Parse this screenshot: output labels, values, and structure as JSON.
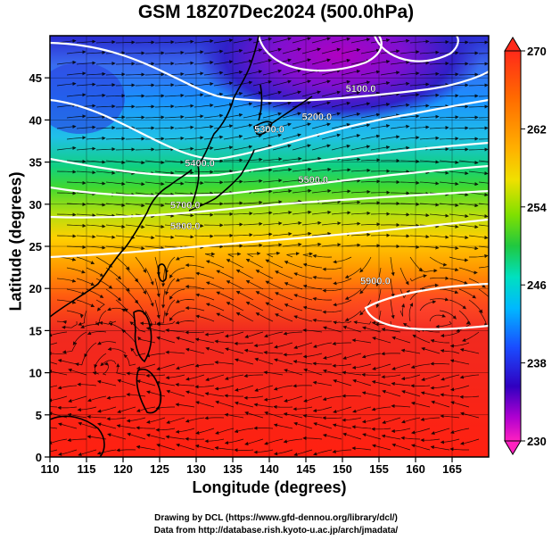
{
  "title": "GSM 18Z07Dec2024 (500.0hPa)",
  "xlabel": "Longitude (degrees)",
  "ylabel": "Latitude  (degrees)",
  "credits": [
    "Drawing by DCL (https://www.gfd-dennou.org/library/dcl/)",
    "Data from http://database.rish.kyoto-u.ac.jp/arch/jmadata/"
  ],
  "map": {
    "lon_range": [
      110,
      170
    ],
    "lat_range": [
      0,
      50
    ],
    "lon_ticks": [
      "110",
      "115",
      "120",
      "125",
      "130",
      "135",
      "140",
      "145",
      "150",
      "155",
      "160",
      "165"
    ],
    "lat_ticks": [
      "0",
      "5",
      "10",
      "15",
      "20",
      "25",
      "30",
      "35",
      "40",
      "45"
    ],
    "field": "temperature (shaded)",
    "overlays": [
      "geopotential height contours",
      "wind streamlines",
      "coastlines"
    ]
  },
  "contours": [
    {
      "label": "5100.0",
      "lon": 152.5,
      "lat": 43.3
    },
    {
      "label": "5200.0",
      "lon": 146.5,
      "lat": 40.0
    },
    {
      "label": "5300.0",
      "lon": 140.0,
      "lat": 38.5
    },
    {
      "label": "5400.0",
      "lon": 130.5,
      "lat": 34.5
    },
    {
      "label": "5500.0",
      "lon": 146.0,
      "lat": 32.5
    },
    {
      "label": "5700.0",
      "lon": 128.5,
      "lat": 29.5
    },
    {
      "label": "5800.0",
      "lon": 128.5,
      "lat": 27.0
    },
    {
      "label": "5900.0",
      "lon": 154.5,
      "lat": 20.5
    }
  ],
  "colorbar": {
    "min": 230,
    "max": 270,
    "tick_labels": [
      "270",
      "262",
      "254",
      "246",
      "238",
      "230"
    ],
    "tick_values": [
      270,
      262,
      254,
      246,
      238,
      230
    ],
    "colors": [
      "#ff1a1a",
      "#ff7a00",
      "#ffd400",
      "#a8e000",
      "#22c822",
      "#00e0a0",
      "#00c8ff",
      "#1a60ff",
      "#2a00c8",
      "#a000d0",
      "#ff20c0"
    ]
  }
}
